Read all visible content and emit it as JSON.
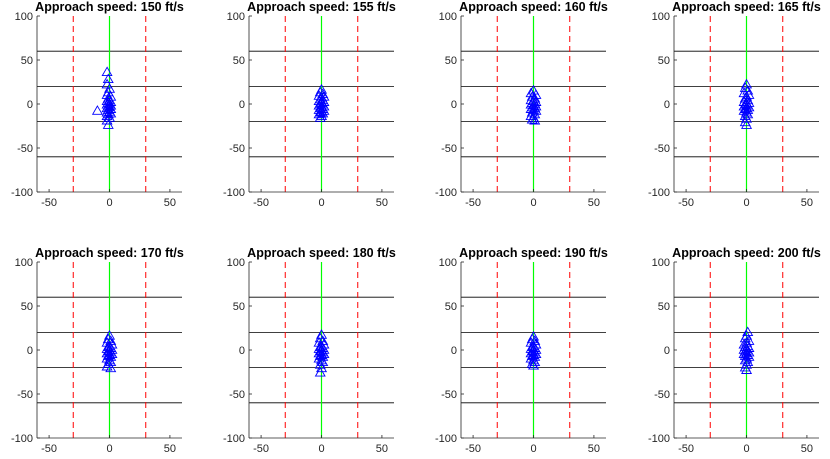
{
  "chart_data": [
    {
      "type": "scatter",
      "title": "Approach speed: 150 ft/s",
      "xlim": [
        -60,
        60
      ],
      "ylim": [
        -100,
        100
      ],
      "xticks": [
        -50,
        0,
        50
      ],
      "yticks": [
        -100,
        -50,
        0,
        50,
        100
      ],
      "grid": false,
      "reference_lines": {
        "horizontal_black": [
          60,
          20,
          -20,
          -60
        ],
        "vertical_red_dashed": [
          -30,
          30
        ],
        "vertical_green": [
          0
        ]
      },
      "series": [
        {
          "marker": "triangle",
          "color": "#0000ff",
          "points": [
            [
              -2,
              36
            ],
            [
              -1,
              28
            ],
            [
              -2,
              22
            ],
            [
              0,
              17
            ],
            [
              -1,
              13
            ],
            [
              -2,
              10
            ],
            [
              1,
              8
            ],
            [
              -1,
              6
            ],
            [
              0,
              4
            ],
            [
              -2,
              3
            ],
            [
              1,
              2
            ],
            [
              -1,
              1
            ],
            [
              0,
              0
            ],
            [
              -2,
              -1
            ],
            [
              1,
              -2
            ],
            [
              -1,
              -3
            ],
            [
              0,
              -4
            ],
            [
              -2,
              -5
            ],
            [
              1,
              -6
            ],
            [
              -1,
              -7
            ],
            [
              -10,
              -8
            ],
            [
              0,
              -9
            ],
            [
              -2,
              -10
            ],
            [
              1,
              -11
            ],
            [
              -1,
              -12
            ],
            [
              -2,
              -14
            ],
            [
              0,
              -16
            ],
            [
              -2,
              -19
            ],
            [
              -1,
              -24
            ]
          ]
        }
      ]
    },
    {
      "type": "scatter",
      "title": "Approach speed: 155 ft/s",
      "xlim": [
        -60,
        60
      ],
      "ylim": [
        -100,
        100
      ],
      "xticks": [
        -50,
        0,
        50
      ],
      "yticks": [
        -100,
        -50,
        0,
        50,
        100
      ],
      "grid": false,
      "reference_lines": {
        "horizontal_black": [
          60,
          20,
          -20,
          -60
        ],
        "vertical_red_dashed": [
          -30,
          30
        ],
        "vertical_green": [
          0
        ]
      },
      "series": [
        {
          "marker": "triangle",
          "color": "#0000ff",
          "points": [
            [
              0,
              16
            ],
            [
              -1,
              13
            ],
            [
              1,
              11
            ],
            [
              -2,
              9
            ],
            [
              2,
              8
            ],
            [
              0,
              7
            ],
            [
              -1,
              5
            ],
            [
              1,
              4
            ],
            [
              -2,
              3
            ],
            [
              2,
              2
            ],
            [
              0,
              1
            ],
            [
              -1,
              0
            ],
            [
              1,
              -1
            ],
            [
              -2,
              -2
            ],
            [
              2,
              -3
            ],
            [
              0,
              -4
            ],
            [
              -1,
              -5
            ],
            [
              1,
              -6
            ],
            [
              -2,
              -7
            ],
            [
              2,
              -8
            ],
            [
              0,
              -9
            ],
            [
              -1,
              -10
            ],
            [
              1,
              -11
            ],
            [
              -2,
              -12
            ],
            [
              0,
              -14
            ],
            [
              -1,
              -16
            ]
          ]
        }
      ]
    },
    {
      "type": "scatter",
      "title": "Approach speed: 160 ft/s",
      "xlim": [
        -60,
        60
      ],
      "ylim": [
        -100,
        100
      ],
      "xticks": [
        -50,
        0,
        50
      ],
      "yticks": [
        -100,
        -50,
        0,
        50,
        100
      ],
      "grid": false,
      "reference_lines": {
        "horizontal_black": [
          60,
          20,
          -20,
          -60
        ],
        "vertical_red_dashed": [
          -30,
          30
        ],
        "vertical_green": [
          0
        ]
      },
      "series": [
        {
          "marker": "triangle",
          "color": "#0000ff",
          "points": [
            [
              0,
              15
            ],
            [
              -2,
              12
            ],
            [
              2,
              10
            ],
            [
              -1,
              8
            ],
            [
              1,
              6
            ],
            [
              -2,
              4
            ],
            [
              0,
              3
            ],
            [
              2,
              2
            ],
            [
              -1,
              1
            ],
            [
              1,
              0
            ],
            [
              -2,
              -1
            ],
            [
              0,
              -2
            ],
            [
              2,
              -3
            ],
            [
              -1,
              -4
            ],
            [
              1,
              -5
            ],
            [
              -2,
              -6
            ],
            [
              0,
              -7
            ],
            [
              2,
              -8
            ],
            [
              -1,
              -10
            ],
            [
              1,
              -12
            ],
            [
              -2,
              -14
            ],
            [
              0,
              -16
            ],
            [
              -1,
              -18
            ],
            [
              1,
              -19
            ]
          ]
        }
      ]
    },
    {
      "type": "scatter",
      "title": "Approach speed: 165 ft/s",
      "xlim": [
        -60,
        60
      ],
      "ylim": [
        -100,
        100
      ],
      "xticks": [
        -50,
        0,
        50
      ],
      "yticks": [
        -100,
        -50,
        0,
        50,
        100
      ],
      "grid": false,
      "reference_lines": {
        "horizontal_black": [
          60,
          20,
          -20,
          -60
        ],
        "vertical_red_dashed": [
          -30,
          30
        ],
        "vertical_green": [
          0
        ]
      },
      "series": [
        {
          "marker": "triangle",
          "color": "#0000ff",
          "points": [
            [
              0,
              22
            ],
            [
              -1,
              18
            ],
            [
              1,
              15
            ],
            [
              -2,
              12
            ],
            [
              2,
              10
            ],
            [
              0,
              8
            ],
            [
              -1,
              6
            ],
            [
              1,
              4
            ],
            [
              -2,
              2
            ],
            [
              2,
              1
            ],
            [
              0,
              0
            ],
            [
              -1,
              -1
            ],
            [
              1,
              -2
            ],
            [
              -2,
              -3
            ],
            [
              2,
              -4
            ],
            [
              0,
              -5
            ],
            [
              -1,
              -6
            ],
            [
              1,
              -7
            ],
            [
              -2,
              -8
            ],
            [
              0,
              -10
            ],
            [
              1,
              -12
            ],
            [
              -1,
              -14
            ],
            [
              0,
              -17
            ],
            [
              -1,
              -21
            ],
            [
              0,
              -24
            ]
          ]
        }
      ]
    },
    {
      "type": "scatter",
      "title": "Approach speed: 170 ft/s",
      "xlim": [
        -60,
        60
      ],
      "ylim": [
        -100,
        100
      ],
      "xticks": [
        -50,
        0,
        50
      ],
      "yticks": [
        -100,
        -50,
        0,
        50,
        100
      ],
      "grid": false,
      "reference_lines": {
        "horizontal_black": [
          60,
          20,
          -20,
          -60
        ],
        "vertical_red_dashed": [
          -30,
          30
        ],
        "vertical_green": [
          0
        ]
      },
      "series": [
        {
          "marker": "triangle",
          "color": "#0000ff",
          "points": [
            [
              0,
              16
            ],
            [
              -1,
              12
            ],
            [
              1,
              10
            ],
            [
              -2,
              8
            ],
            [
              2,
              6
            ],
            [
              0,
              4
            ],
            [
              -1,
              3
            ],
            [
              1,
              2
            ],
            [
              -2,
              1
            ],
            [
              2,
              0
            ],
            [
              0,
              -1
            ],
            [
              -1,
              -2
            ],
            [
              1,
              -3
            ],
            [
              -2,
              -4
            ],
            [
              2,
              -5
            ],
            [
              0,
              -6
            ],
            [
              -1,
              -7
            ],
            [
              1,
              -8
            ],
            [
              -2,
              -10
            ],
            [
              0,
              -12
            ],
            [
              1,
              -14
            ],
            [
              -1,
              -16
            ],
            [
              -2,
              -19
            ],
            [
              1,
              -21
            ]
          ]
        }
      ]
    },
    {
      "type": "scatter",
      "title": "Approach speed: 180 ft/s",
      "xlim": [
        -60,
        60
      ],
      "ylim": [
        -100,
        100
      ],
      "xticks": [
        -50,
        0,
        50
      ],
      "yticks": [
        -100,
        -50,
        0,
        50,
        100
      ],
      "grid": false,
      "reference_lines": {
        "horizontal_black": [
          60,
          20,
          -20,
          -60
        ],
        "vertical_red_dashed": [
          -30,
          30
        ],
        "vertical_green": [
          0
        ]
      },
      "series": [
        {
          "marker": "triangle",
          "color": "#0000ff",
          "points": [
            [
              0,
              17
            ],
            [
              -1,
              13
            ],
            [
              1,
              10
            ],
            [
              -2,
              8
            ],
            [
              2,
              6
            ],
            [
              0,
              4
            ],
            [
              -1,
              3
            ],
            [
              1,
              2
            ],
            [
              -2,
              1
            ],
            [
              2,
              0
            ],
            [
              0,
              -1
            ],
            [
              -1,
              -2
            ],
            [
              1,
              -3
            ],
            [
              -2,
              -4
            ],
            [
              2,
              -5
            ],
            [
              0,
              -6
            ],
            [
              -1,
              -7
            ],
            [
              1,
              -8
            ],
            [
              -2,
              -10
            ],
            [
              0,
              -12
            ],
            [
              1,
              -14
            ],
            [
              -1,
              -17
            ],
            [
              0,
              -21
            ],
            [
              -1,
              -26
            ]
          ]
        }
      ]
    },
    {
      "type": "scatter",
      "title": "Approach speed: 190 ft/s",
      "xlim": [
        -60,
        60
      ],
      "ylim": [
        -100,
        100
      ],
      "xticks": [
        -50,
        0,
        50
      ],
      "yticks": [
        -100,
        -50,
        0,
        50,
        100
      ],
      "grid": false,
      "reference_lines": {
        "horizontal_black": [
          60,
          20,
          -20,
          -60
        ],
        "vertical_red_dashed": [
          -30,
          30
        ],
        "vertical_green": [
          0
        ]
      },
      "series": [
        {
          "marker": "triangle",
          "color": "#0000ff",
          "points": [
            [
              0,
              15
            ],
            [
              -1,
              12
            ],
            [
              1,
              10
            ],
            [
              -2,
              8
            ],
            [
              2,
              6
            ],
            [
              0,
              4
            ],
            [
              -1,
              3
            ],
            [
              1,
              2
            ],
            [
              -2,
              1
            ],
            [
              2,
              0
            ],
            [
              0,
              -1
            ],
            [
              -1,
              -2
            ],
            [
              1,
              -3
            ],
            [
              -2,
              -4
            ],
            [
              2,
              -5
            ],
            [
              0,
              -6
            ],
            [
              -1,
              -7
            ],
            [
              1,
              -8
            ],
            [
              -2,
              -10
            ],
            [
              0,
              -12
            ],
            [
              1,
              -14
            ],
            [
              -1,
              -16
            ],
            [
              0,
              -18
            ]
          ]
        }
      ]
    },
    {
      "type": "scatter",
      "title": "Approach speed: 200 ft/s",
      "xlim": [
        -60,
        60
      ],
      "ylim": [
        -100,
        100
      ],
      "xticks": [
        -50,
        0,
        50
      ],
      "yticks": [
        -100,
        -50,
        0,
        50,
        100
      ],
      "grid": false,
      "reference_lines": {
        "horizontal_black": [
          60,
          20,
          -20,
          -60
        ],
        "vertical_red_dashed": [
          -30,
          30
        ],
        "vertical_green": [
          0
        ]
      },
      "series": [
        {
          "marker": "triangle",
          "color": "#0000ff",
          "points": [
            [
              1,
              20
            ],
            [
              0,
              16
            ],
            [
              -1,
              13
            ],
            [
              2,
              10
            ],
            [
              0,
              8
            ],
            [
              -2,
              6
            ],
            [
              1,
              4
            ],
            [
              -1,
              3
            ],
            [
              2,
              2
            ],
            [
              0,
              1
            ],
            [
              -2,
              0
            ],
            [
              1,
              -1
            ],
            [
              -1,
              -2
            ],
            [
              2,
              -3
            ],
            [
              0,
              -4
            ],
            [
              -2,
              -5
            ],
            [
              1,
              -6
            ],
            [
              -1,
              -7
            ],
            [
              2,
              -8
            ],
            [
              0,
              -10
            ],
            [
              -1,
              -12
            ],
            [
              1,
              -14
            ],
            [
              0,
              -17
            ],
            [
              -1,
              -20
            ],
            [
              0,
              -23
            ]
          ]
        }
      ]
    }
  ],
  "colors": {
    "axis": "#262626",
    "horizontal_line": "#000000",
    "boundary_line": "#ff0000",
    "centerline": "#00ff00",
    "marker": "#0000ff"
  }
}
